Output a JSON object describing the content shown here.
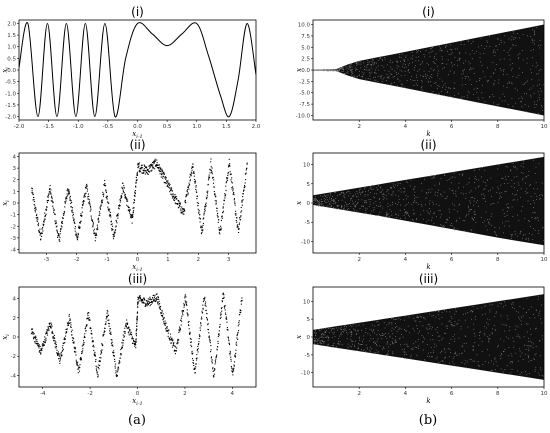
{
  "chart_data": [
    {
      "panel": "a-i",
      "type": "line",
      "title": "(i)",
      "xlabel": "x_{i-1}",
      "ylabel": "x_i",
      "xlim": [
        -2.0,
        2.0
      ],
      "ylim": [
        -2.15,
        2.15
      ],
      "xticks": [
        "-2.0",
        "-1.5",
        "-1.0",
        "-0.5",
        "0.0",
        "0.5",
        "1.0",
        "1.5",
        "2.0"
      ],
      "yticks": [
        "-2.0",
        "-1.5",
        "-1.0",
        "-0.5",
        "0.0",
        "0.5",
        "1.0",
        "1.5",
        "2.0"
      ],
      "x": [
        -2.0,
        -1.85,
        -1.68,
        -1.52,
        -1.36,
        -1.2,
        -1.04,
        -0.88,
        -0.72,
        -0.55,
        -0.38,
        -0.2,
        0.0,
        0.25,
        0.5,
        0.75,
        1.0,
        1.2,
        1.4,
        1.55,
        1.7,
        1.85,
        2.0
      ],
      "y": [
        0.1,
        2.0,
        -2.0,
        2.0,
        -2.0,
        2.0,
        -2.0,
        2.0,
        -2.0,
        2.0,
        -2.0,
        0.5,
        2.0,
        1.55,
        1.05,
        1.55,
        2.0,
        0.6,
        -1.1,
        -2.0,
        -0.4,
        2.0,
        -0.2
      ]
    },
    {
      "panel": "a-ii",
      "type": "scatter",
      "title": "(ii)",
      "xlabel": "x_{i-1}",
      "ylabel": "x_i",
      "xlim": [
        -3.9,
        3.9
      ],
      "ylim": [
        -4.3,
        4.3
      ],
      "xticks": [
        "-3",
        "-2",
        "-1",
        "0",
        "1",
        "2",
        "3"
      ],
      "yticks": [
        "-4",
        "-3",
        "-2",
        "-1",
        "0",
        "1",
        "2",
        "3",
        "4"
      ],
      "x": [
        -3.5,
        -3.2,
        -2.9,
        -2.6,
        -2.3,
        -2.0,
        -1.7,
        -1.4,
        -1.1,
        -0.8,
        -0.5,
        -0.2,
        0.0,
        0.3,
        0.6,
        0.9,
        1.2,
        1.5,
        1.8,
        2.1,
        2.4,
        2.7,
        3.0,
        3.3,
        3.6
      ],
      "y": [
        1.2,
        -3.0,
        1.3,
        -3.2,
        1.4,
        -3.1,
        1.5,
        -3.0,
        1.6,
        -2.8,
        1.5,
        -1.5,
        3.2,
        2.8,
        3.5,
        2.0,
        0.5,
        -0.8,
        3.4,
        -2.5,
        3.5,
        -2.6,
        3.6,
        -2.5,
        3.5
      ],
      "band_spread": 0.8
    },
    {
      "panel": "a-iii",
      "type": "scatter",
      "title": "(iii)",
      "xlabel": "x_{i-1}",
      "ylabel": "x_i",
      "xlim": [
        -5.0,
        5.0
      ],
      "ylim": [
        -5.2,
        5.2
      ],
      "xticks": [
        "-4",
        "-2",
        "0",
        "2",
        "4"
      ],
      "yticks": [
        "-4",
        "-2",
        "0",
        "2",
        "4"
      ],
      "x": [
        -4.5,
        -4.1,
        -3.7,
        -3.3,
        -2.9,
        -2.5,
        -2.1,
        -1.7,
        -1.3,
        -0.9,
        -0.5,
        -0.1,
        0.0,
        0.4,
        0.8,
        1.2,
        1.6,
        2.0,
        2.4,
        2.8,
        3.2,
        3.6,
        4.0,
        4.4
      ],
      "y": [
        0.8,
        -1.5,
        1.5,
        -2.5,
        2.0,
        -3.5,
        2.5,
        -3.8,
        2.7,
        -4.0,
        1.5,
        -1.0,
        4.0,
        3.6,
        4.2,
        1.0,
        -1.5,
        4.3,
        -3.8,
        4.4,
        -4.0,
        4.5,
        -4.0,
        4.5
      ],
      "band_spread": 0.9
    },
    {
      "panel": "b-i",
      "type": "scatter",
      "title": "(i)",
      "xlabel": "k",
      "ylabel": "x",
      "xlim": [
        0,
        10
      ],
      "ylim": [
        -11,
        11
      ],
      "xticks": [
        "2",
        "4",
        "6",
        "8",
        "10"
      ],
      "yticks": [
        "-10.0",
        "-7.5",
        "-5.0",
        "-2.5",
        "0.0",
        "2.5",
        "5.0",
        "7.5",
        "10.0"
      ],
      "k": [
        0.0,
        0.5,
        1.0,
        1.5,
        2.0,
        3.0,
        4.0,
        5.0,
        6.0,
        7.0,
        8.0,
        9.0,
        10.0
      ],
      "upper": [
        0.05,
        0.1,
        0.2,
        1.2,
        2.0,
        3.0,
        4.0,
        5.0,
        6.0,
        7.0,
        8.0,
        9.0,
        10.0
      ],
      "lower": [
        -0.05,
        -0.1,
        -0.2,
        -1.2,
        -2.0,
        -3.0,
        -4.0,
        -5.0,
        -6.0,
        -7.0,
        -8.0,
        -9.0,
        -10.0
      ]
    },
    {
      "panel": "b-ii",
      "type": "scatter",
      "title": "(ii)",
      "xlabel": "k",
      "ylabel": "x",
      "xlim": [
        0,
        10
      ],
      "ylim": [
        -13,
        13
      ],
      "xticks": [
        "2",
        "4",
        "6",
        "8",
        "10"
      ],
      "yticks": [
        "-10",
        "-5",
        "0",
        "5",
        "10"
      ],
      "k": [
        0.0,
        1.0,
        2.0,
        3.0,
        4.0,
        5.0,
        6.0,
        7.0,
        8.0,
        9.0,
        10.0
      ],
      "upper": [
        2.0,
        3.0,
        4.0,
        5.0,
        6.0,
        7.0,
        8.0,
        9.0,
        10.0,
        11.0,
        12.0
      ],
      "lower": [
        -0.5,
        -1.5,
        -2.5,
        -3.5,
        -4.6,
        -5.7,
        -6.8,
        -7.9,
        -9.0,
        -10.0,
        -11.0
      ]
    },
    {
      "panel": "b-iii",
      "type": "scatter",
      "title": "(iii)",
      "xlabel": "k",
      "ylabel": "x",
      "xlim": [
        0,
        10
      ],
      "ylim": [
        -14,
        14
      ],
      "xticks": [
        "2",
        "4",
        "6",
        "8",
        "10"
      ],
      "yticks": [
        "-10",
        "-5",
        "0",
        "5",
        "10"
      ],
      "k": [
        0.0,
        1.0,
        2.0,
        3.0,
        4.0,
        5.0,
        6.0,
        7.0,
        8.0,
        9.0,
        10.0
      ],
      "upper": [
        2.0,
        3.0,
        4.0,
        5.0,
        6.0,
        7.0,
        8.0,
        9.0,
        10.0,
        11.0,
        12.0
      ],
      "lower": [
        -2.0,
        -3.0,
        -4.0,
        -5.0,
        -6.0,
        -7.0,
        -8.0,
        -9.0,
        -10.0,
        -11.0,
        -12.0
      ]
    }
  ],
  "captions": {
    "left": "(a)",
    "right": "(b)"
  }
}
